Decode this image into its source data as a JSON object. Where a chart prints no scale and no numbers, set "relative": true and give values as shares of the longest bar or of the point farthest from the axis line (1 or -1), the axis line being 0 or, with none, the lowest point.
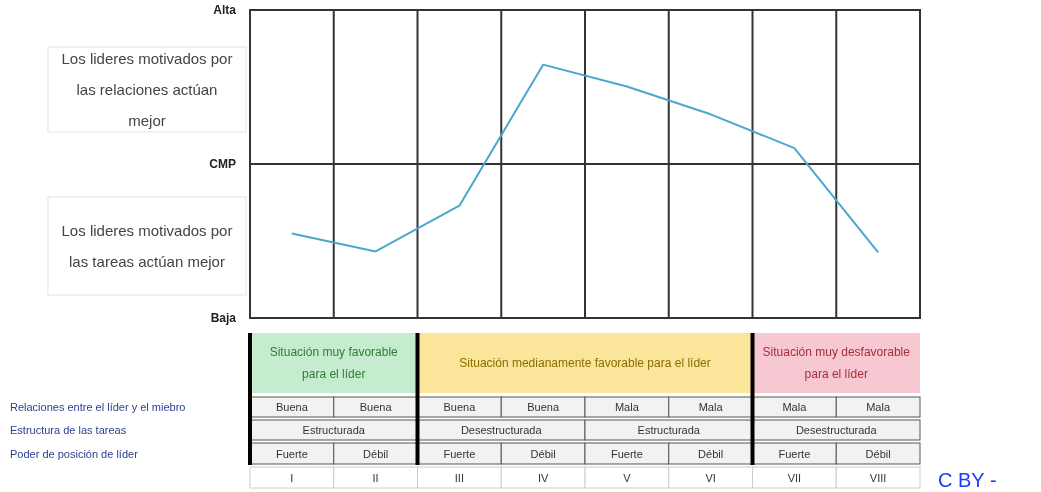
{
  "chart_data": {
    "type": "line",
    "relative": true,
    "categories": [
      "I",
      "II",
      "III",
      "IV",
      "V",
      "VI",
      "VII",
      "VIII"
    ],
    "series": [
      {
        "color": "#4aa8d0",
        "values": [
          -0.7,
          -0.88,
          -0.42,
          1,
          0.78,
          0.5,
          0.16,
          -0.89
        ]
      }
    ],
    "grid": true,
    "line_style": "solid",
    "annotations": [
      "Los lideres motivados por las relaciones actúan mejor",
      "Los lideres motivados por las tareas actúan mejor",
      "Situación muy favorable para el líder",
      "Situación medianamente favorable para el líder",
      "Situación muy desfavorable para el líder",
      "Relaciones entre el líder y el miebro",
      "Estructura de las tareas",
      "Poder de posición de líder",
      "Buena",
      "Buena",
      "Buena",
      "Buena",
      "Mala",
      "Mala",
      "Mala",
      "Mala",
      "Estructurada",
      "Desestructurada",
      "Estructurada",
      "Desestructurada",
      "Fuerte",
      "Débil",
      "Fuerte",
      "Débil",
      "Fuerte",
      "Débil",
      "Fuerte",
      "Débil",
      "C BY -",
      "Alta",
      "CMP",
      "Baja"
    ]
  }
}
